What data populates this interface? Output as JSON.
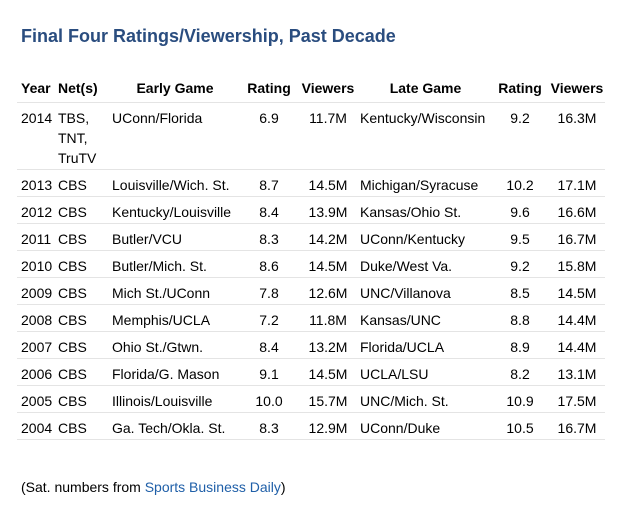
{
  "title": "Final Four Ratings/Viewership, Past Decade",
  "columns": {
    "year": "Year",
    "net": "Net(s)",
    "early_game": "Early Game",
    "early_rating": "Rating",
    "early_viewers": "Viewers",
    "late_game": "Late Game",
    "late_rating": "Rating",
    "late_viewers": "Viewers"
  },
  "rows": [
    {
      "year": "2014",
      "nets": [
        "TBS,",
        "TNT,",
        "TruTV"
      ],
      "early_game": "UConn/Florida",
      "early_rating": "6.9",
      "early_viewers": "11.7M",
      "late_game": "Kentucky/Wisconsin",
      "late_rating": "9.2",
      "late_viewers": "16.3M"
    },
    {
      "year": "2013",
      "nets": [
        "CBS"
      ],
      "early_game": "Louisville/Wich. St.",
      "early_rating": "8.7",
      "early_viewers": "14.5M",
      "late_game": "Michigan/Syracuse",
      "late_rating": "10.2",
      "late_viewers": "17.1M"
    },
    {
      "year": "2012",
      "nets": [
        "CBS"
      ],
      "early_game": "Kentucky/Louisville",
      "early_rating": "8.4",
      "early_viewers": "13.9M",
      "late_game": "Kansas/Ohio St.",
      "late_rating": "9.6",
      "late_viewers": "16.6M"
    },
    {
      "year": "2011",
      "nets": [
        "CBS"
      ],
      "early_game": "Butler/VCU",
      "early_rating": "8.3",
      "early_viewers": "14.2M",
      "late_game": "UConn/Kentucky",
      "late_rating": "9.5",
      "late_viewers": "16.7M"
    },
    {
      "year": "2010",
      "nets": [
        "CBS"
      ],
      "early_game": "Butler/Mich. St.",
      "early_rating": "8.6",
      "early_viewers": "14.5M",
      "late_game": "Duke/West Va.",
      "late_rating": "9.2",
      "late_viewers": "15.8M"
    },
    {
      "year": "2009",
      "nets": [
        "CBS"
      ],
      "early_game": "Mich St./UConn",
      "early_rating": "7.8",
      "early_viewers": "12.6M",
      "late_game": "UNC/Villanova",
      "late_rating": "8.5",
      "late_viewers": "14.5M"
    },
    {
      "year": "2008",
      "nets": [
        "CBS"
      ],
      "early_game": "Memphis/UCLA",
      "early_rating": "7.2",
      "early_viewers": "11.8M",
      "late_game": "Kansas/UNC",
      "late_rating": "8.8",
      "late_viewers": "14.4M"
    },
    {
      "year": "2007",
      "nets": [
        "CBS"
      ],
      "early_game": "Ohio St./Gtwn.",
      "early_rating": "8.4",
      "early_viewers": "13.2M",
      "late_game": "Florida/UCLA",
      "late_rating": "8.9",
      "late_viewers": "14.4M"
    },
    {
      "year": "2006",
      "nets": [
        "CBS"
      ],
      "early_game": "Florida/G. Mason",
      "early_rating": "9.1",
      "early_viewers": "14.5M",
      "late_game": "UCLA/LSU",
      "late_rating": "8.2",
      "late_viewers": "13.1M"
    },
    {
      "year": "2005",
      "nets": [
        "CBS"
      ],
      "early_game": "Illinois/Louisville",
      "early_rating": "10.0",
      "early_viewers": "15.7M",
      "late_game": "UNC/Mich. St.",
      "late_rating": "10.9",
      "late_viewers": "17.5M"
    },
    {
      "year": "2004",
      "nets": [
        "CBS"
      ],
      "early_game": "Ga. Tech/Okla. St.",
      "early_rating": "8.3",
      "early_viewers": "12.9M",
      "late_game": "UConn/Duke",
      "late_rating": "10.5",
      "late_viewers": "16.7M"
    }
  ],
  "footnote": {
    "prefix": "(Sat. numbers from ",
    "link_text": "Sports Business Daily",
    "suffix": ")",
    "link_color": "#1f5fa8"
  },
  "colors": {
    "title": "#2a4d7f",
    "row_divider": "#e4e4e4"
  }
}
